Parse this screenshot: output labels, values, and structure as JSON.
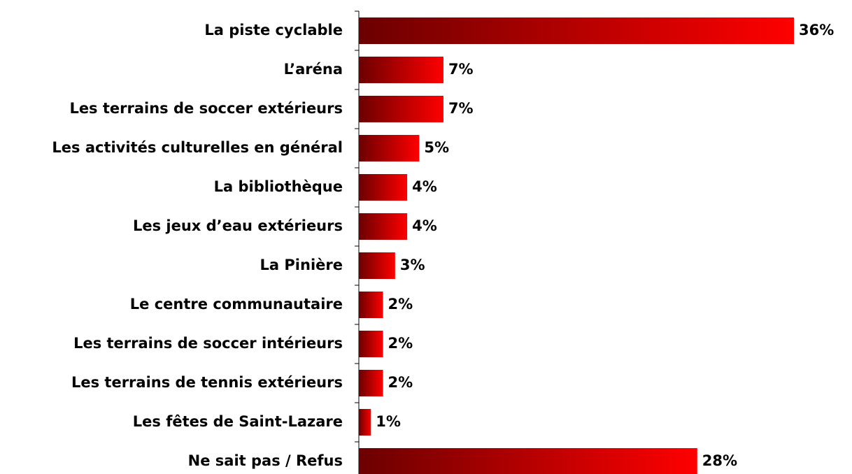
{
  "chart_data": {
    "type": "hbar",
    "categories": [
      "La piste cyclable",
      "L’aréna",
      "Les terrains de soccer extérieurs",
      "Les activités culturelles en général",
      "La bibliothèque",
      "Les jeux d’eau extérieurs",
      "La Pinière",
      "Le centre communautaire",
      "Les terrains de soccer intérieurs",
      "Les terrains de tennis extérieurs",
      "Les fêtes de Saint-Lazare",
      "Ne sait pas / Refus"
    ],
    "values": [
      36,
      7,
      7,
      5,
      4,
      4,
      3,
      2,
      2,
      2,
      1,
      28
    ],
    "value_labels": [
      "36%",
      "7%",
      "7%",
      "5%",
      "4%",
      "4%",
      "3%",
      "2%",
      "2%",
      "2%",
      "1%",
      "28%"
    ],
    "color": "#ff0000",
    "gradient_from": "#6b0000"
  }
}
